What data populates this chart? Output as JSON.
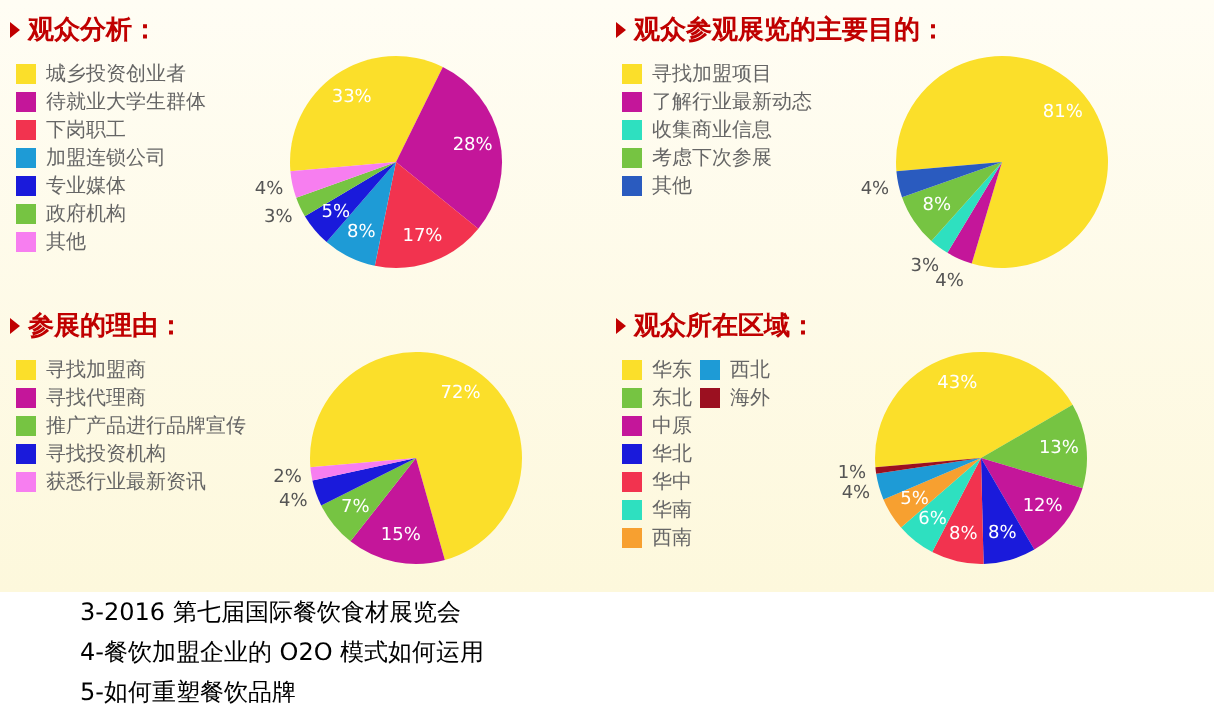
{
  "chart_data": [
    {
      "type": "pie",
      "title": "观众分析：",
      "legend": "left",
      "categories": [
        "城乡投资创业者",
        "待就业大学生群体",
        "下岗职工",
        "加盟连锁公司",
        "专业媒体",
        "政府机构",
        "其他"
      ],
      "values": [
        33,
        28,
        17,
        8,
        5,
        3,
        4
      ],
      "value_labels": [
        "33%",
        "28%",
        "17%",
        "8%",
        "5%",
        "3%",
        "4%"
      ],
      "colors": [
        "#fbdf2a",
        "#c4169a",
        "#f2334f",
        "#1e9bd6",
        "#1a1adb",
        "#76c442",
        "#f77ef0"
      ]
    },
    {
      "type": "pie",
      "title": "观众参观展览的主要目的：",
      "legend": "left",
      "categories": [
        "寻找加盟项目",
        "了解行业最新动态",
        "收集商业信息",
        "考虑下次参展",
        "其他"
      ],
      "values": [
        81,
        4,
        3,
        8,
        4
      ],
      "value_labels": [
        "81%",
        "4%",
        "3%",
        "8%",
        "4%"
      ],
      "colors": [
        "#fbdf2a",
        "#c4169a",
        "#2ee0c0",
        "#76c442",
        "#2a5bbf"
      ]
    },
    {
      "type": "pie",
      "title": "参展的理由：",
      "legend": "left",
      "categories": [
        "寻找加盟商",
        "寻找代理商",
        "推广产品进行品牌宣传",
        "寻找投资机构",
        "获悉行业最新资讯"
      ],
      "values": [
        72,
        15,
        7,
        4,
        2
      ],
      "value_labels": [
        "72%",
        "15%",
        "7%",
        "4%",
        "2%"
      ],
      "colors": [
        "#fbdf2a",
        "#c4169a",
        "#76c442",
        "#1a1adb",
        "#f77ef0"
      ]
    },
    {
      "type": "pie",
      "title": "观众所在区域：",
      "legend": "left",
      "categories": [
        "华东",
        "东北",
        "中原",
        "华北",
        "华中",
        "华南",
        "西南",
        "西北",
        "海外"
      ],
      "values": [
        43,
        13,
        12,
        8,
        8,
        6,
        5,
        4,
        1
      ],
      "value_labels": [
        "43%",
        "13%",
        "12%",
        "8%",
        "8%",
        "6%",
        "5%",
        "4%",
        "1%"
      ],
      "colors": [
        "#fbdf2a",
        "#76c442",
        "#c4169a",
        "#1a1adb",
        "#f2334f",
        "#2ee0c0",
        "#f7a030",
        "#1e9bd6",
        "#9b1020"
      ]
    },
    {
      "type": "other",
      "annotations": [
        "3-2016 第七届国际餐饮食材展览会",
        "4-餐饮加盟企业的 O2O 模式如何运用",
        "5-如何重塑餐饮品牌"
      ]
    }
  ]
}
